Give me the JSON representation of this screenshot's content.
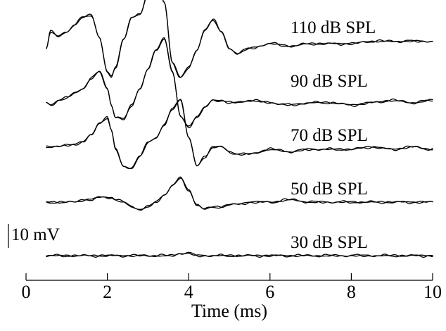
{
  "chart_data": {
    "type": "line",
    "title": "",
    "xlabel": "Time (ms)",
    "ylabel": "",
    "xlim": [
      0,
      10
    ],
    "x_ticks": [
      0,
      2,
      4,
      6,
      8,
      10
    ],
    "x_tick_labels": [
      "0",
      "2",
      "4",
      "6",
      "8",
      "10"
    ],
    "grid": false,
    "legend": "none",
    "scale_bar": {
      "label": "10 mV",
      "value_mV": 10
    },
    "trace_color": "#000000",
    "repeats_per_series": 2,
    "x": [
      0.5,
      0.6,
      0.8,
      1.0,
      1.2,
      1.4,
      1.6,
      1.8,
      2.0,
      2.1,
      2.2,
      2.4,
      2.6,
      2.8,
      3.0,
      3.2,
      3.4,
      3.6,
      3.8,
      4.0,
      4.2,
      4.4,
      4.6,
      4.8,
      5.0,
      5.2,
      5.5,
      6.0,
      6.5,
      7.0,
      7.5,
      8.0,
      8.5,
      9.0,
      9.5,
      10.0
    ],
    "series": [
      {
        "name": "110 dB SPL",
        "values": [
          -2,
          5,
          3,
          5,
          8,
          11,
          12,
          3,
          -12,
          -14,
          -10,
          2,
          11,
          12,
          21,
          30,
          17,
          -8,
          -14,
          -10,
          -3,
          6,
          10,
          5,
          -2,
          -4,
          -2,
          0,
          -1,
          0,
          0,
          0,
          1,
          1,
          1,
          1
        ]
      },
      {
        "name": "90 dB SPL",
        "values": [
          -2,
          -3,
          -1,
          0,
          2,
          4,
          8,
          11,
          4,
          -3,
          -8,
          -9,
          -3,
          4,
          12,
          20,
          25,
          11,
          -8,
          -12,
          -8,
          -4,
          -1,
          -1,
          -2,
          -2,
          -1,
          -2,
          -3,
          -2,
          -2,
          -3,
          -2,
          -1,
          -2,
          -1
        ]
      },
      {
        "name": "70 dB SPL",
        "values": [
          1,
          1,
          1,
          2,
          2,
          3,
          6,
          11,
          13,
          8,
          0,
          -7,
          -8,
          -3,
          3,
          5,
          10,
          17,
          21,
          5,
          -7,
          -3,
          1,
          1,
          -1,
          -2,
          -2,
          0,
          -1,
          0,
          0,
          0,
          1,
          0,
          1,
          0
        ]
      },
      {
        "name": "50 dB SPL",
        "values": [
          0,
          0,
          0,
          0,
          0,
          1,
          1,
          2,
          2,
          2,
          1,
          0,
          -2,
          -3,
          -2,
          0,
          3,
          7,
          10,
          5,
          -1,
          -3,
          -2,
          -2,
          -1,
          -1,
          0,
          0,
          1,
          0,
          0,
          0,
          0,
          0,
          0,
          0
        ]
      },
      {
        "name": "30 dB SPL",
        "values": [
          0,
          0,
          0,
          0,
          0,
          0,
          0,
          0,
          0,
          0,
          0,
          0,
          0,
          0,
          0,
          0,
          0,
          0,
          1,
          1,
          0,
          0,
          0,
          0,
          0,
          0,
          0,
          0,
          0,
          0,
          0,
          0,
          0,
          0,
          0,
          0
        ]
      }
    ]
  }
}
